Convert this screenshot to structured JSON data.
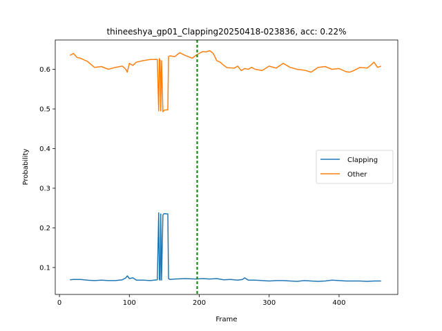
{
  "chart_data": {
    "type": "line",
    "title": "thineeshya_gp01_Clapping20250418-023836,  acc: 0.22%",
    "xlabel": "Frame",
    "ylabel": "Probability",
    "xlim": [
      -6,
      484
    ],
    "ylim": [
      0.032,
      0.674
    ],
    "xticks": [
      0,
      100,
      200,
      300,
      400
    ],
    "yticks": [
      0.1,
      0.2,
      0.3,
      0.4,
      0.5,
      0.6
    ],
    "ytick_labels": [
      "0.1",
      "0.2",
      "0.3",
      "0.4",
      "0.5",
      "0.6"
    ],
    "grid": false,
    "legend_position": "center-right",
    "vline": {
      "x": 197,
      "color": "#008000",
      "style": "dashed"
    },
    "series": [
      {
        "name": "Clapping",
        "color": "#1f77b4",
        "x": [
          15,
          20,
          30,
          40,
          50,
          60,
          70,
          80,
          90,
          95,
          97,
          100,
          105,
          110,
          120,
          130,
          140,
          142,
          143,
          144,
          145,
          146,
          148,
          150,
          155,
          156,
          158,
          165,
          180,
          195,
          205,
          215,
          225,
          235,
          245,
          255,
          262,
          265,
          270,
          280,
          290,
          300,
          310,
          320,
          330,
          340,
          350,
          360,
          370,
          380,
          390,
          400,
          410,
          420,
          430,
          440,
          450,
          460
        ],
        "values": [
          0.069,
          0.07,
          0.07,
          0.068,
          0.067,
          0.068,
          0.067,
          0.067,
          0.069,
          0.074,
          0.079,
          0.072,
          0.074,
          0.068,
          0.068,
          0.067,
          0.069,
          0.238,
          0.07,
          0.068,
          0.235,
          0.068,
          0.233,
          0.236,
          0.235,
          0.072,
          0.07,
          0.071,
          0.072,
          0.071,
          0.072,
          0.071,
          0.072,
          0.069,
          0.07,
          0.068,
          0.07,
          0.074,
          0.068,
          0.068,
          0.067,
          0.066,
          0.067,
          0.067,
          0.066,
          0.065,
          0.067,
          0.066,
          0.065,
          0.066,
          0.068,
          0.067,
          0.066,
          0.066,
          0.066,
          0.065,
          0.066,
          0.066
        ]
      },
      {
        "name": "Other",
        "color": "#ff7f0e",
        "x": [
          15,
          20,
          25,
          30,
          40,
          50,
          60,
          70,
          80,
          90,
          95,
          97,
          100,
          105,
          110,
          120,
          130,
          140,
          142,
          143,
          144,
          145,
          146,
          148,
          150,
          155,
          156,
          158,
          165,
          172,
          180,
          190,
          195,
          200,
          205,
          210,
          215,
          220,
          225,
          230,
          235,
          240,
          250,
          255,
          260,
          265,
          270,
          275,
          280,
          290,
          300,
          310,
          320,
          330,
          340,
          350,
          360,
          370,
          380,
          390,
          400,
          410,
          415,
          420,
          430,
          440,
          445,
          450,
          455,
          460
        ],
        "values": [
          0.635,
          0.64,
          0.63,
          0.628,
          0.62,
          0.605,
          0.607,
          0.6,
          0.605,
          0.608,
          0.6,
          0.593,
          0.615,
          0.61,
          0.618,
          0.622,
          0.625,
          0.625,
          0.495,
          0.627,
          0.622,
          0.495,
          0.622,
          0.493,
          0.497,
          0.498,
          0.632,
          0.634,
          0.632,
          0.642,
          0.635,
          0.628,
          0.635,
          0.64,
          0.645,
          0.644,
          0.647,
          0.64,
          0.622,
          0.618,
          0.61,
          0.604,
          0.603,
          0.608,
          0.597,
          0.602,
          0.6,
          0.605,
          0.6,
          0.597,
          0.608,
          0.603,
          0.615,
          0.605,
          0.6,
          0.598,
          0.593,
          0.605,
          0.607,
          0.6,
          0.602,
          0.594,
          0.593,
          0.596,
          0.605,
          0.603,
          0.61,
          0.618,
          0.605,
          0.608
        ]
      }
    ]
  }
}
